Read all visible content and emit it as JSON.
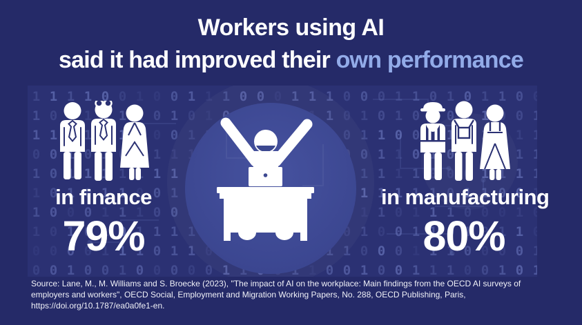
{
  "title": {
    "line1": "Workers using AI",
    "line2_prefix": "said it had improved their ",
    "line2_accent": "own performance"
  },
  "stats": [
    {
      "id": "finance",
      "label": "in finance",
      "value": "79%",
      "icon": "finance-workers-icon"
    },
    {
      "id": "manufacturing",
      "label": "in manufacturing",
      "value": "80%",
      "icon": "manufacturing-workers-icon"
    }
  ],
  "center": {
    "icon": "happy-worker-at-desk-icon"
  },
  "source": "Source: Lane, M., M. Williams and S. Broecke (2023), \"The impact of AI on the workplace: Main findings from the OECD AI surveys of employers and workers\", OECD Social, Employment and Migration Working Papers, No. 288, OECD Publishing, Paris, https://doi.org/10.1787/ea0a0fe1-en.",
  "background_pattern": "binary-digits-and-circuit-traces",
  "colors": {
    "bg": "#252a68",
    "band": "#2b3173",
    "accent": "#92abe8",
    "circle_light": "#46529f",
    "circle_dark": "#3b4690",
    "pictogram": "#ffffff"
  },
  "chart_data": {
    "type": "bar",
    "categories": [
      "in finance",
      "in manufacturing"
    ],
    "values": [
      79,
      80
    ],
    "values_display": [
      "79%",
      "80%"
    ],
    "title": "Workers using AI said it had improved their own performance",
    "xlabel": "",
    "ylabel": "",
    "ylim": [
      0,
      100
    ],
    "legend": false,
    "style": "pictogram infographic, white icons on dark navy binary-code background"
  }
}
